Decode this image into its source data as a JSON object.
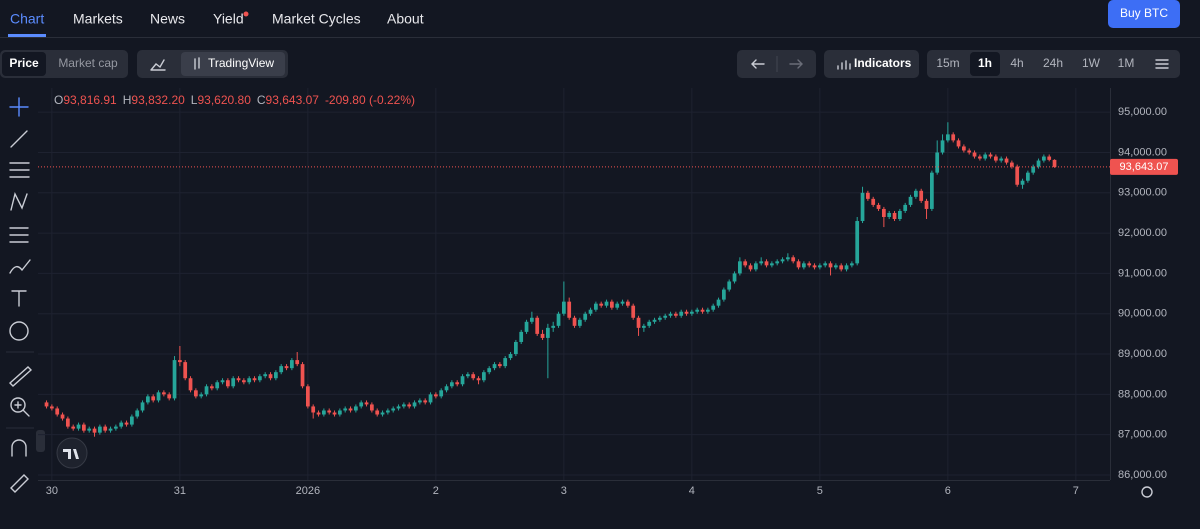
{
  "nav": {
    "items": [
      "Chart",
      "Markets",
      "News",
      "Yield",
      "Market Cycles",
      "About"
    ],
    "button": "Buy BTC"
  },
  "toolbar": {
    "metrics": [
      "Price",
      "Market cap"
    ],
    "chart_style": "TradingView",
    "indicators": "Indicators",
    "intervals": [
      "15m",
      "1h",
      "4h",
      "24h",
      "1W",
      "1M"
    ]
  },
  "chart_data": {
    "type": "candlestick",
    "readout": [
      {
        "key": "O",
        "value": "93,816.91"
      },
      {
        "key": "H",
        "value": "93,832.20"
      },
      {
        "key": "L",
        "value": "93,620.80"
      },
      {
        "key": "C",
        "value": "93,643.07"
      }
    ],
    "change": "-209.80 (-0.22%)",
    "up_color": "#26a69a",
    "down_color": "#ef5350",
    "grid": true,
    "price_line": {
      "value": 93643.07,
      "label": "93,643.07"
    },
    "ylim": [
      85925,
      95600
    ],
    "yticks": [
      {
        "value": 86000,
        "label": "86,000.00"
      },
      {
        "value": 87000,
        "label": "87,000.00"
      },
      {
        "value": 88000,
        "label": "88,000.00"
      },
      {
        "value": 89000,
        "label": "89,000.00"
      },
      {
        "value": 90000,
        "label": "90,000.00"
      },
      {
        "value": 91000,
        "label": "91,000.00"
      },
      {
        "value": 92000,
        "label": "92,000.00"
      },
      {
        "value": 93000,
        "label": "93,000.00"
      },
      {
        "value": 94000,
        "label": "94,000.00"
      },
      {
        "value": 95000,
        "label": "95,000.00"
      }
    ],
    "xlim": [
      -1.6,
      199.4
    ],
    "xticks": [
      {
        "value": 1,
        "label": "30"
      },
      {
        "value": 25,
        "label": "31"
      },
      {
        "value": 49,
        "label": "2026"
      },
      {
        "value": 73,
        "label": "2"
      },
      {
        "value": 97,
        "label": "3"
      },
      {
        "value": 121,
        "label": "4"
      },
      {
        "value": 145,
        "label": "5"
      },
      {
        "value": 169,
        "label": "6"
      },
      {
        "value": 193,
        "label": "7"
      }
    ],
    "ohlc": [
      [
        87800,
        87850,
        87650,
        87700
      ],
      [
        87700,
        87750,
        87600,
        87650
      ],
      [
        87650,
        87700,
        87450,
        87500
      ],
      [
        87500,
        87550,
        87350,
        87400
      ],
      [
        87400,
        87450,
        87150,
        87200
      ],
      [
        87200,
        87250,
        87100,
        87150
      ],
      [
        87150,
        87300,
        87100,
        87250
      ],
      [
        87250,
        87300,
        87050,
        87100
      ],
      [
        87100,
        87200,
        87050,
        87150
      ],
      [
        87150,
        87200,
        86950,
        87050
      ],
      [
        87050,
        87250,
        87000,
        87200
      ],
      [
        87200,
        87250,
        87050,
        87100
      ],
      [
        87100,
        87200,
        87050,
        87150
      ],
      [
        87150,
        87250,
        87100,
        87200
      ],
      [
        87200,
        87350,
        87150,
        87300
      ],
      [
        87300,
        87350,
        87200,
        87250
      ],
      [
        87250,
        87500,
        87200,
        87450
      ],
      [
        87450,
        87650,
        87400,
        87600
      ],
      [
        87600,
        87850,
        87550,
        87800
      ],
      [
        87800,
        88000,
        87750,
        87950
      ],
      [
        87950,
        88000,
        87800,
        87850
      ],
      [
        87850,
        88100,
        87800,
        88050
      ],
      [
        88050,
        88100,
        87950,
        88000
      ],
      [
        88000,
        88050,
        87850,
        87900
      ],
      [
        87900,
        88950,
        87850,
        88850
      ],
      [
        88850,
        89200,
        88700,
        88800
      ],
      [
        88800,
        88850,
        88350,
        88400
      ],
      [
        88400,
        88450,
        88050,
        88100
      ],
      [
        88100,
        88150,
        87900,
        87950
      ],
      [
        87950,
        88050,
        87900,
        88000
      ],
      [
        88000,
        88250,
        87950,
        88200
      ],
      [
        88200,
        88250,
        88100,
        88150
      ],
      [
        88150,
        88350,
        88100,
        88300
      ],
      [
        88300,
        88400,
        88250,
        88350
      ],
      [
        88350,
        88400,
        88150,
        88200
      ],
      [
        88200,
        88450,
        88150,
        88400
      ],
      [
        88400,
        88450,
        88300,
        88350
      ],
      [
        88350,
        88400,
        88250,
        88300
      ],
      [
        88300,
        88450,
        88250,
        88400
      ],
      [
        88400,
        88450,
        88300,
        88350
      ],
      [
        88350,
        88500,
        88300,
        88450
      ],
      [
        88450,
        88550,
        88400,
        88500
      ],
      [
        88500,
        88550,
        88350,
        88400
      ],
      [
        88400,
        88600,
        88350,
        88550
      ],
      [
        88550,
        88750,
        88500,
        88700
      ],
      [
        88700,
        88750,
        88600,
        88650
      ],
      [
        88650,
        88900,
        88600,
        88850
      ],
      [
        88850,
        89050,
        88700,
        88750
      ],
      [
        88750,
        88800,
        88150,
        88200
      ],
      [
        88200,
        88250,
        87650,
        87700
      ],
      [
        87700,
        87750,
        87400,
        87550
      ],
      [
        87550,
        87600,
        87450,
        87500
      ],
      [
        87500,
        87650,
        87450,
        87600
      ],
      [
        87600,
        87650,
        87500,
        87550
      ],
      [
        87550,
        87600,
        87450,
        87500
      ],
      [
        87500,
        87650,
        87450,
        87600
      ],
      [
        87600,
        87700,
        87550,
        87650
      ],
      [
        87650,
        87700,
        87550,
        87600
      ],
      [
        87600,
        87750,
        87550,
        87700
      ],
      [
        87700,
        87850,
        87650,
        87800
      ],
      [
        87800,
        87850,
        87700,
        87750
      ],
      [
        87750,
        87800,
        87550,
        87600
      ],
      [
        87600,
        87650,
        87450,
        87500
      ],
      [
        87500,
        87600,
        87450,
        87550
      ],
      [
        87550,
        87650,
        87500,
        87600
      ],
      [
        87600,
        87700,
        87550,
        87650
      ],
      [
        87650,
        87750,
        87600,
        87700
      ],
      [
        87700,
        87800,
        87650,
        87750
      ],
      [
        87750,
        87800,
        87650,
        87700
      ],
      [
        87700,
        87850,
        87650,
        87800
      ],
      [
        87800,
        87900,
        87750,
        87850
      ],
      [
        87850,
        87900,
        87750,
        87800
      ],
      [
        87800,
        88050,
        87750,
        88000
      ],
      [
        88000,
        88050,
        87900,
        87950
      ],
      [
        87950,
        88150,
        87900,
        88100
      ],
      [
        88100,
        88250,
        88050,
        88200
      ],
      [
        88200,
        88350,
        88150,
        88300
      ],
      [
        88300,
        88350,
        88200,
        88250
      ],
      [
        88250,
        88500,
        88200,
        88450
      ],
      [
        88450,
        88550,
        88400,
        88500
      ],
      [
        88500,
        88550,
        88350,
        88400
      ],
      [
        88400,
        88450,
        88250,
        88350
      ],
      [
        88350,
        88600,
        88300,
        88550
      ],
      [
        88550,
        88700,
        88500,
        88650
      ],
      [
        88650,
        88800,
        88600,
        88750
      ],
      [
        88750,
        88800,
        88650,
        88700
      ],
      [
        88700,
        88950,
        88650,
        88900
      ],
      [
        88900,
        89050,
        88850,
        89000
      ],
      [
        89000,
        89350,
        88950,
        89300
      ],
      [
        89300,
        89600,
        89250,
        89550
      ],
      [
        89550,
        89850,
        89500,
        89800
      ],
      [
        89800,
        90050,
        89750,
        89900
      ],
      [
        89900,
        89950,
        89450,
        89500
      ],
      [
        89500,
        89600,
        89350,
        89400
      ],
      [
        89400,
        89750,
        88400,
        89650
      ],
      [
        89650,
        89800,
        89550,
        89700
      ],
      [
        89700,
        90050,
        89650,
        90000
      ],
      [
        90000,
        90800,
        89950,
        90300
      ],
      [
        90300,
        90400,
        89850,
        89900
      ],
      [
        89900,
        89950,
        89650,
        89700
      ],
      [
        89700,
        89900,
        89650,
        89850
      ],
      [
        89850,
        90050,
        89800,
        90000
      ],
      [
        90000,
        90150,
        89950,
        90100
      ],
      [
        90100,
        90300,
        90050,
        90250
      ],
      [
        90250,
        90300,
        90150,
        90200
      ],
      [
        90200,
        90350,
        90150,
        90300
      ],
      [
        90300,
        90350,
        90100,
        90150
      ],
      [
        90150,
        90300,
        90100,
        90250
      ],
      [
        90250,
        90350,
        90200,
        90300
      ],
      [
        90300,
        90350,
        90150,
        90200
      ],
      [
        90200,
        90250,
        89850,
        89900
      ],
      [
        89900,
        89950,
        89450,
        89650
      ],
      [
        89650,
        89750,
        89550,
        89700
      ],
      [
        89700,
        89850,
        89650,
        89800
      ],
      [
        89800,
        89900,
        89750,
        89850
      ],
      [
        89850,
        89950,
        89800,
        89900
      ],
      [
        89900,
        90000,
        89850,
        89950
      ],
      [
        89950,
        90050,
        89900,
        90000
      ],
      [
        90000,
        90050,
        89900,
        89950
      ],
      [
        89950,
        90100,
        89900,
        90050
      ],
      [
        90050,
        90100,
        89950,
        90000
      ],
      [
        90000,
        90100,
        89950,
        90050
      ],
      [
        90050,
        90150,
        90000,
        90100
      ],
      [
        90100,
        90150,
        90000,
        90050
      ],
      [
        90050,
        90150,
        90000,
        90100
      ],
      [
        90100,
        90250,
        90050,
        90200
      ],
      [
        90200,
        90400,
        90150,
        90350
      ],
      [
        90350,
        90650,
        90300,
        90600
      ],
      [
        90600,
        90850,
        90550,
        90800
      ],
      [
        90800,
        91050,
        90750,
        91000
      ],
      [
        91000,
        91400,
        90950,
        91300
      ],
      [
        91300,
        91350,
        91150,
        91200
      ],
      [
        91200,
        91250,
        91050,
        91100
      ],
      [
        91100,
        91300,
        91050,
        91250
      ],
      [
        91250,
        91400,
        91200,
        91300
      ],
      [
        91300,
        91350,
        91150,
        91200
      ],
      [
        91200,
        91300,
        91150,
        91250
      ],
      [
        91250,
        91350,
        91200,
        91300
      ],
      [
        91300,
        91400,
        91250,
        91350
      ],
      [
        91350,
        91500,
        91300,
        91400
      ],
      [
        91400,
        91450,
        91250,
        91300
      ],
      [
        91300,
        91350,
        91100,
        91150
      ],
      [
        91150,
        91300,
        91100,
        91250
      ],
      [
        91250,
        91300,
        91150,
        91200
      ],
      [
        91200,
        91250,
        91100,
        91150
      ],
      [
        91150,
        91250,
        91100,
        91200
      ],
      [
        91200,
        91300,
        91150,
        91250
      ],
      [
        91250,
        91300,
        90950,
        91150
      ],
      [
        91150,
        91250,
        91100,
        91200
      ],
      [
        91200,
        91250,
        91050,
        91100
      ],
      [
        91100,
        91250,
        91050,
        91200
      ],
      [
        91200,
        91300,
        91150,
        91250
      ],
      [
        91250,
        92400,
        91200,
        92300
      ],
      [
        92300,
        93150,
        92250,
        93000
      ],
      [
        93000,
        93050,
        92800,
        92850
      ],
      [
        92850,
        92900,
        92650,
        92700
      ],
      [
        92700,
        92750,
        92550,
        92600
      ],
      [
        92600,
        92650,
        92150,
        92400
      ],
      [
        92400,
        92550,
        92350,
        92500
      ],
      [
        92500,
        92550,
        92300,
        92350
      ],
      [
        92350,
        92600,
        92300,
        92550
      ],
      [
        92550,
        92750,
        92500,
        92700
      ],
      [
        92700,
        92950,
        92650,
        92900
      ],
      [
        92900,
        93100,
        92850,
        93050
      ],
      [
        93050,
        93100,
        92750,
        92800
      ],
      [
        92800,
        92850,
        92350,
        92600
      ],
      [
        92600,
        93550,
        92550,
        93500
      ],
      [
        93500,
        94300,
        93450,
        94000
      ],
      [
        94000,
        94450,
        93950,
        94300
      ],
      [
        94300,
        94750,
        94250,
        94450
      ],
      [
        94450,
        94500,
        94250,
        94300
      ],
      [
        94300,
        94350,
        94100,
        94150
      ],
      [
        94150,
        94200,
        94000,
        94050
      ],
      [
        94050,
        94100,
        93950,
        94000
      ],
      [
        94000,
        94050,
        93850,
        93900
      ],
      [
        93900,
        93950,
        93800,
        93850
      ],
      [
        93850,
        94000,
        93800,
        93950
      ],
      [
        93950,
        94000,
        93850,
        93900
      ],
      [
        93900,
        93950,
        93750,
        93800
      ],
      [
        93800,
        93900,
        93750,
        93850
      ],
      [
        93850,
        93900,
        93700,
        93750
      ],
      [
        93750,
        93800,
        93600,
        93650
      ],
      [
        93650,
        93700,
        93150,
        93200
      ],
      [
        93200,
        93350,
        93100,
        93300
      ],
      [
        93300,
        93550,
        93250,
        93500
      ],
      [
        93500,
        93700,
        93450,
        93650
      ],
      [
        93650,
        93850,
        93600,
        93800
      ],
      [
        93800,
        93950,
        93750,
        93900
      ],
      [
        93900,
        93950,
        93780,
        93816.91
      ],
      [
        93816.91,
        93832.2,
        93620.8,
        93643.07
      ]
    ]
  }
}
